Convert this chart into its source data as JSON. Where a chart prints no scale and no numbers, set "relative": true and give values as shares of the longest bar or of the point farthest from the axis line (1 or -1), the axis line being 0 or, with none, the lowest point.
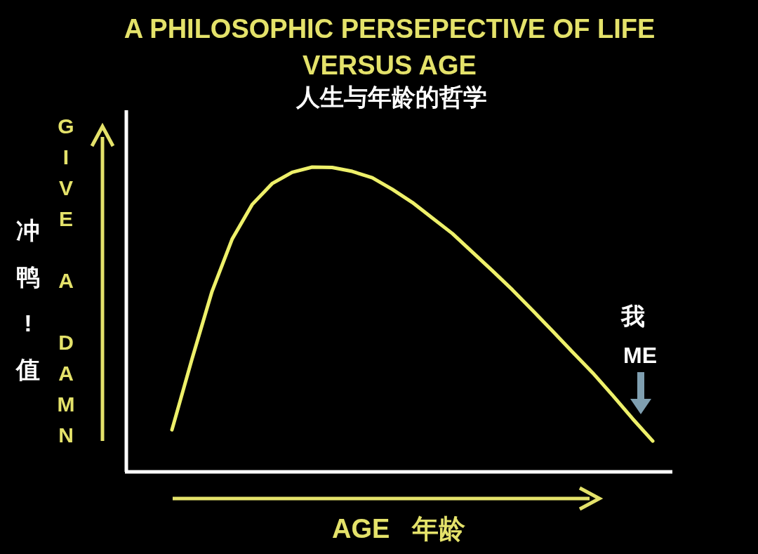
{
  "chart_data": {
    "type": "line",
    "relative": true,
    "title": "A PHILOSOPHIC PERSEPECTIVE OF LIFE VERSUS AGE",
    "subtitle": "人生与年龄的哲学",
    "xlabel": "AGE   年龄",
    "ylabel": "GIVE A DAMN",
    "annotations": [
      "冲鸭!值",
      "我",
      "ME"
    ],
    "categories": [
      null,
      null,
      null,
      null,
      null,
      null,
      null,
      null,
      null,
      null,
      null,
      null,
      null,
      null,
      null,
      null,
      null,
      null,
      null,
      null,
      null,
      null,
      null,
      null,
      null
    ],
    "series": [
      {
        "color": "#eef06a",
        "values": [
          0.138,
          0.37,
          0.592,
          0.763,
          0.877,
          0.946,
          0.983,
          1,
          0.999,
          0.986,
          0.965,
          0.927,
          0.884,
          0.833,
          0.782,
          0.721,
          0.66,
          0.597,
          0.53,
          0.462,
          0.393,
          0.325,
          0.251,
          0.174,
          0.101
        ]
      }
    ],
    "marker": "none",
    "line_style": "solid"
  }
}
